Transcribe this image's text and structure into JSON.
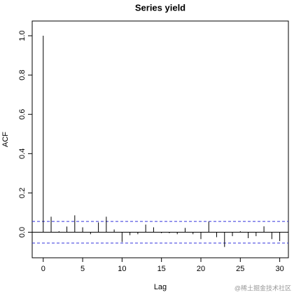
{
  "chart_data": {
    "type": "stem",
    "title": "Series  yield",
    "x_label": "Lag",
    "y_label": "ACF",
    "x": [
      0,
      1,
      2,
      3,
      4,
      5,
      6,
      7,
      8,
      9,
      10,
      11,
      12,
      13,
      14,
      15,
      16,
      17,
      18,
      19,
      20,
      21,
      22,
      23,
      24,
      25,
      26,
      27,
      28,
      29,
      30
    ],
    "values": [
      1.0,
      0.079,
      0.005,
      0.029,
      0.086,
      0.025,
      -0.01,
      0.05,
      0.079,
      0.014,
      -0.05,
      -0.015,
      -0.01,
      0.039,
      0.025,
      -0.005,
      -0.005,
      -0.01,
      0.022,
      -0.01,
      -0.035,
      0.054,
      -0.025,
      -0.075,
      -0.02,
      0.005,
      -0.03,
      -0.02,
      0.03,
      -0.035,
      -0.045
    ],
    "color": "#000000",
    "confidence_bounds": [
      0.055,
      -0.055
    ],
    "confidence_color": "#3333dd",
    "xlim": [
      -1.4,
      31.1
    ],
    "ylim": [
      -0.13,
      1.075
    ],
    "xticks": [
      0,
      5,
      10,
      15,
      20,
      25,
      30
    ],
    "yticks": [
      {
        "value": 0,
        "label": "0.0"
      },
      0.2,
      0.4,
      0.6,
      0.8,
      {
        "value": 1,
        "label": "1.0"
      }
    ]
  },
  "watermark": "@稀土掘金技术社区"
}
